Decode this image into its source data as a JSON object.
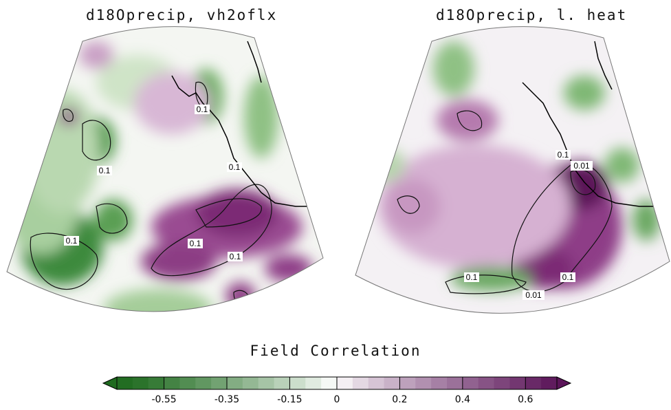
{
  "chart_data": [
    {
      "type": "heatmap",
      "title": "d18Oprecip, vh2oflx",
      "contour_labels": [
        "0.1",
        "0.1",
        "0.1",
        "0.1",
        "0.1",
        "0.1"
      ],
      "features": [
        {
          "kind": "positive",
          "level": 0.45
        },
        {
          "kind": "positive",
          "level": 0.35
        },
        {
          "kind": "negative",
          "level": -0.35
        },
        {
          "kind": "negative",
          "level": -0.45
        },
        {
          "kind": "negative",
          "level": -0.3
        }
      ]
    },
    {
      "type": "heatmap",
      "title": "d18Oprecip, l. heat",
      "contour_labels": [
        "0.1",
        "0.01",
        "0.1",
        "0.1",
        "0.01"
      ],
      "features": [
        {
          "kind": "positive",
          "level": 0.55
        },
        {
          "kind": "positive",
          "level": 0.4
        },
        {
          "kind": "negative",
          "level": -0.3
        }
      ]
    }
  ],
  "colorbar": {
    "label": "Field Correlation",
    "tick_labels": [
      "-0.55",
      "-0.35",
      "-0.15",
      "0",
      "0.2",
      "0.4",
      "0.6"
    ],
    "tick_values": [
      -0.55,
      -0.35,
      -0.15,
      0,
      0.2,
      0.4,
      0.6
    ],
    "range": [
      -0.7,
      0.7
    ],
    "negative_color": "#1f6b1f",
    "positive_color": "#5b1559",
    "center_color": "#ffffff"
  }
}
